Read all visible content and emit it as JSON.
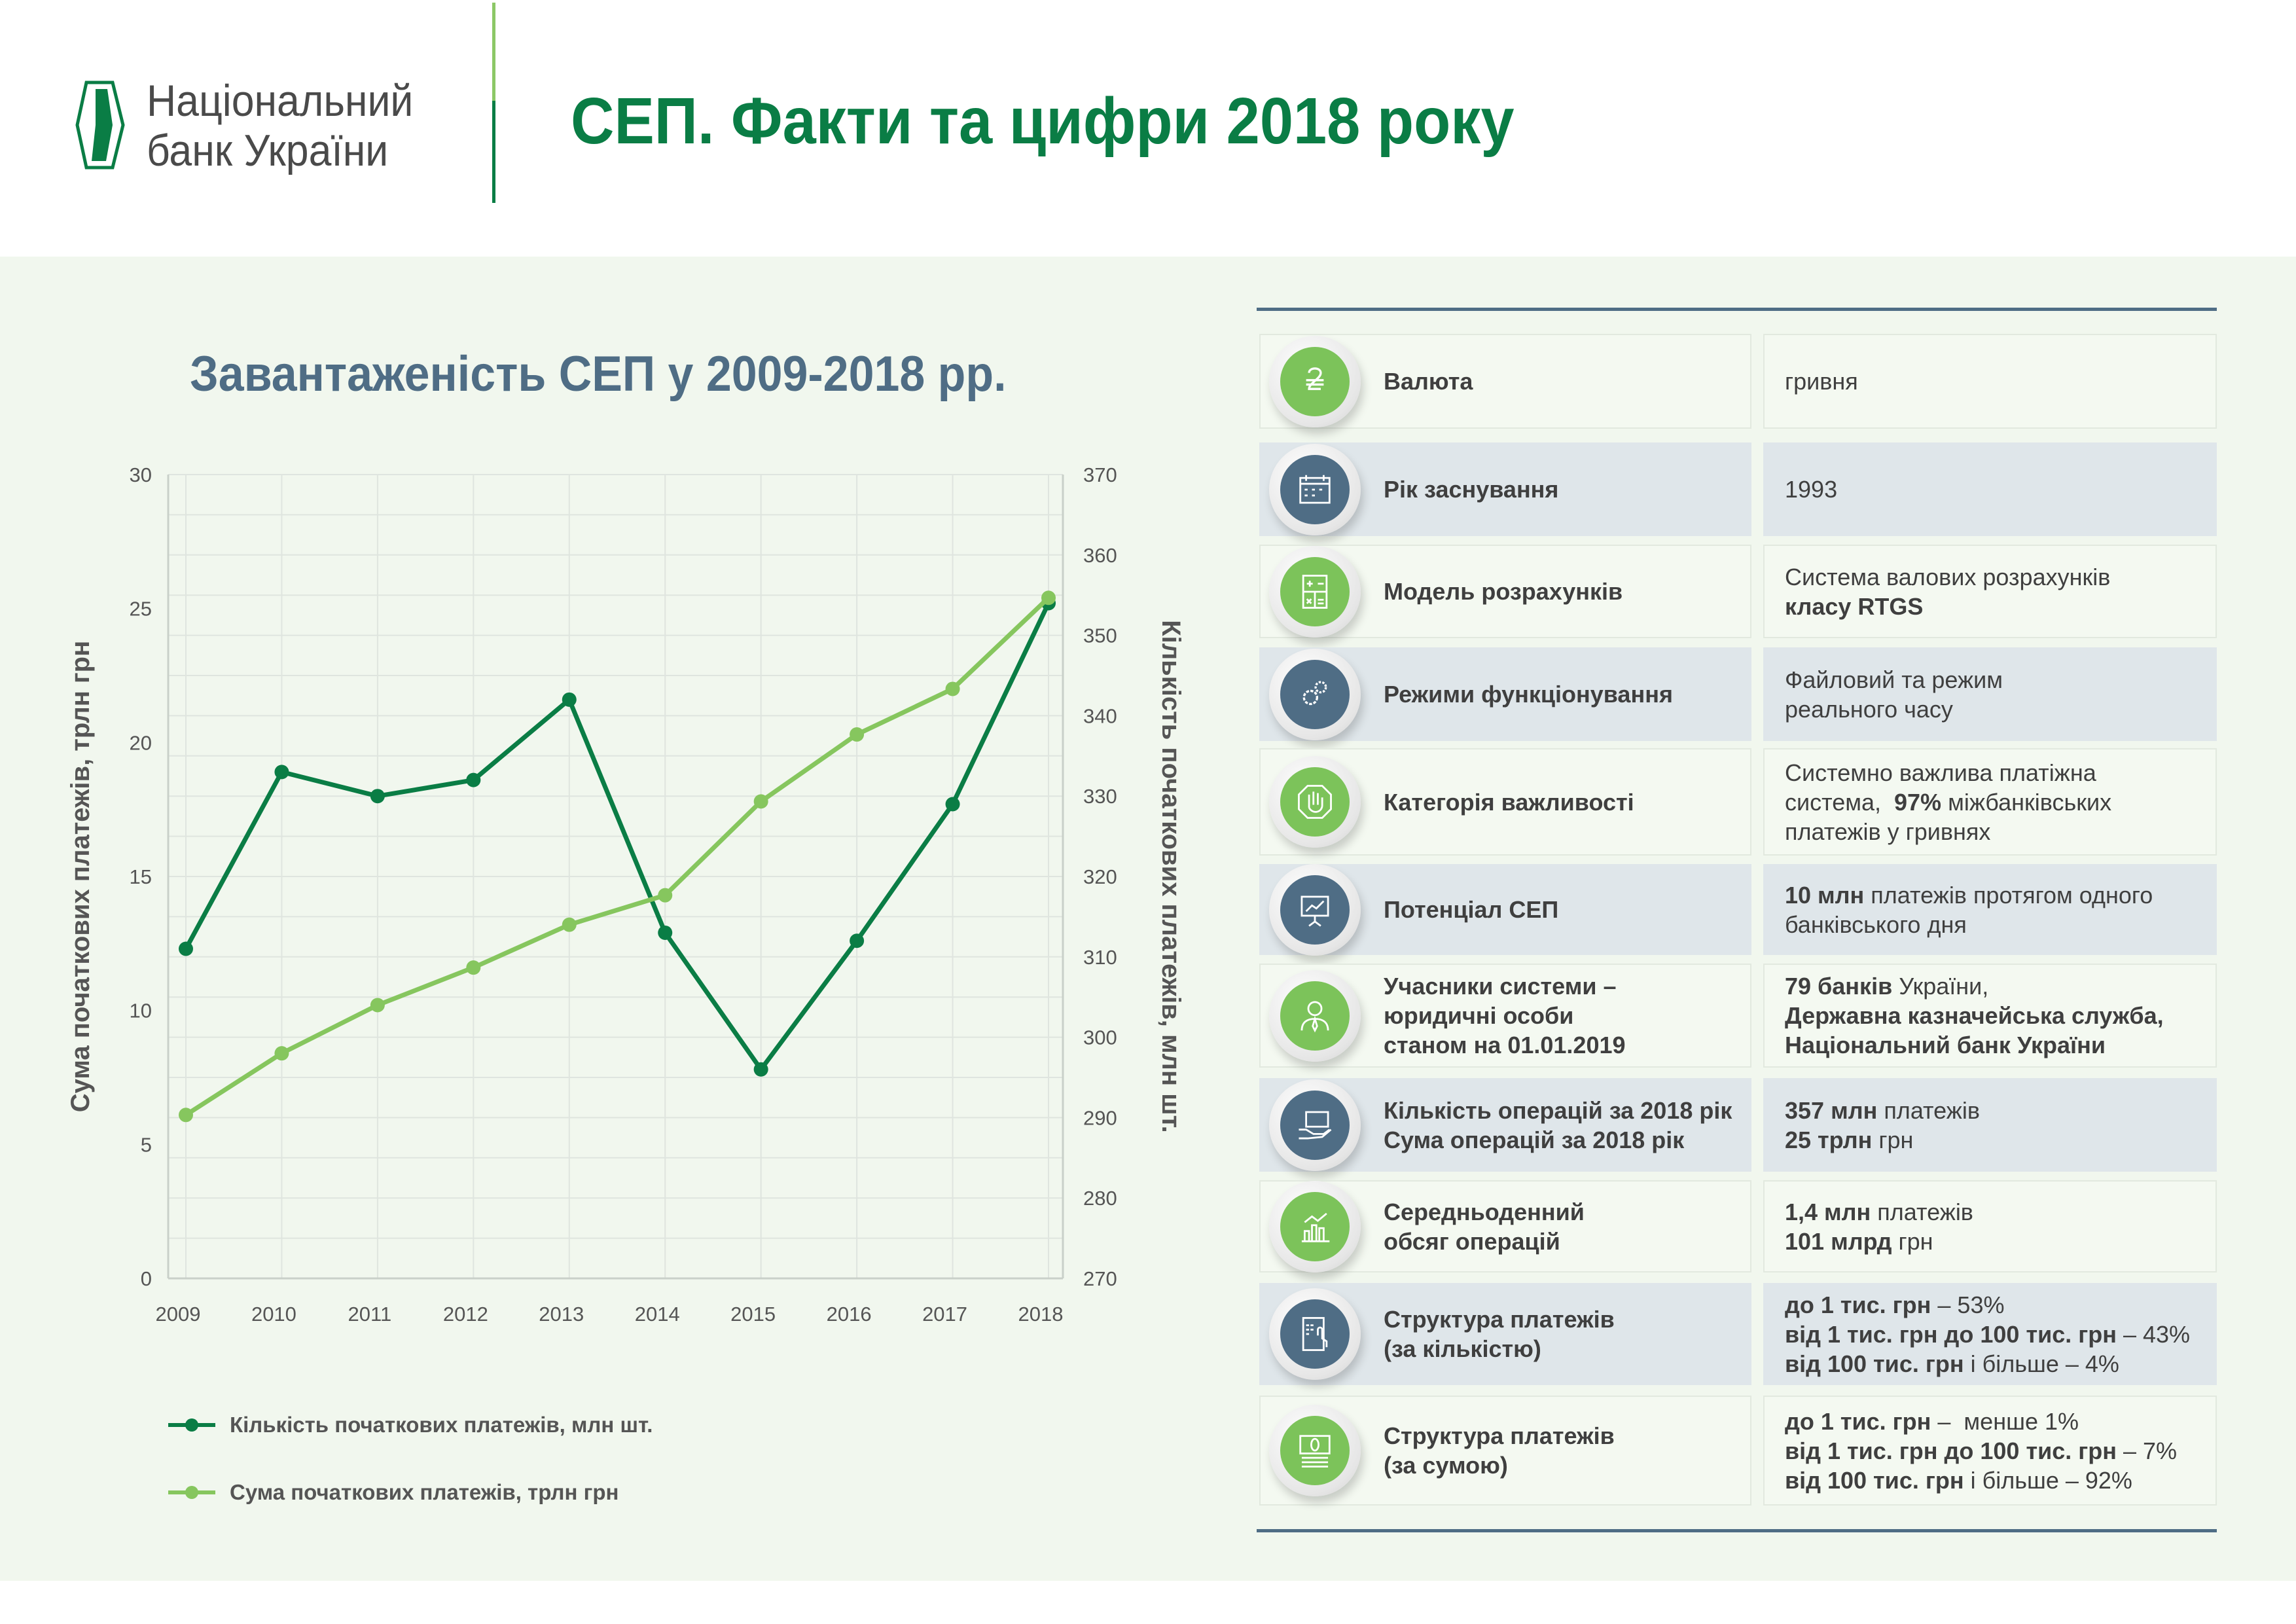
{
  "header": {
    "logo_lines": [
      "Національний",
      "банк України"
    ],
    "title": "СЕП. Факти та цифри 2018 року"
  },
  "colors": {
    "dark_green": "#0a7d45",
    "light_green": "#86c65e",
    "slate": "#4f6d85",
    "bg": "#f1f7ee"
  },
  "chart_data": {
    "type": "line",
    "title": "Завантаженість СЕП у 2009-2018 рр.",
    "categories": [
      "2009",
      "2010",
      "2011",
      "2012",
      "2013",
      "2014",
      "2015",
      "2016",
      "2017",
      "2018"
    ],
    "y_left": {
      "label": "Сума початкових платежів, трлн грн",
      "range": [
        0,
        30
      ],
      "ticks": [
        "0",
        "5",
        "10",
        "15",
        "20",
        "25",
        "30"
      ]
    },
    "y_right": {
      "label": "Кількість початкових платежів, млн шт.",
      "range": [
        270,
        370
      ],
      "ticks": [
        "270",
        "280",
        "290",
        "300",
        "310",
        "320",
        "330",
        "340",
        "350",
        "360",
        "370"
      ]
    },
    "grid": true,
    "legend_position": "bottom-left",
    "series": [
      {
        "name": "Кількість початкових платежів, млн шт.",
        "axis": "right",
        "color": "#0a7d45",
        "values": [
          311,
          333,
          330,
          332,
          342,
          313,
          296,
          312,
          329,
          354
        ]
      },
      {
        "name": "Сума початкових платежів, трлн грн",
        "axis": "left",
        "color": "#86c65e",
        "values": [
          6.1,
          8.4,
          10.2,
          11.6,
          13.2,
          14.3,
          17.8,
          20.3,
          22.0,
          25.4
        ]
      }
    ]
  },
  "facts": [
    {
      "icon": "hryvnia-icon",
      "label": [
        "Валюта"
      ],
      "value": [
        [
          {
            "t": "гривня"
          }
        ]
      ]
    },
    {
      "icon": "calendar-icon",
      "label": [
        "Рік заснування"
      ],
      "value": [
        [
          {
            "t": "1993"
          }
        ]
      ]
    },
    {
      "icon": "calculator-icon",
      "label": [
        "Модель розрахунків"
      ],
      "value": [
        [
          {
            "t": "Система валових розрахунків"
          }
        ],
        [
          {
            "t": "класу RTGS",
            "b": true
          }
        ]
      ]
    },
    {
      "icon": "gears-icon",
      "label": [
        "Режими функціонування"
      ],
      "value": [
        [
          {
            "t": "Файловий та режим"
          }
        ],
        [
          {
            "t": "реального часу"
          }
        ]
      ]
    },
    {
      "icon": "hand-stop-icon",
      "label": [
        "Категорія важливості"
      ],
      "value": [
        [
          {
            "t": "Системно важлива платіжна"
          }
        ],
        [
          {
            "t": "система,  "
          },
          {
            "t": "97%",
            "b": true
          },
          {
            "t": " міжбанківських"
          }
        ],
        [
          {
            "t": "платежів у гривнях"
          }
        ]
      ]
    },
    {
      "icon": "presentation-icon",
      "label": [
        "Потенціал СЕП"
      ],
      "value": [
        [
          {
            "t": "10 млн",
            "b": true
          },
          {
            "t": " платежів протягом одного"
          }
        ],
        [
          {
            "t": "банківського дня"
          }
        ]
      ]
    },
    {
      "icon": "person-icon",
      "label": [
        "Учасники системи –",
        "юридичні особи",
        "станом на 01.01.2019"
      ],
      "value": [
        [
          {
            "t": "79 банків",
            "b": true
          },
          {
            "t": " України,"
          }
        ],
        [
          {
            "t": "Державна казначейська служба,",
            "b": true
          }
        ],
        [
          {
            "t": "Національний банк України",
            "b": true
          }
        ]
      ]
    },
    {
      "icon": "card-hand-icon",
      "label": [
        "Кількість операцій за 2018 рік",
        "Сума операцій за 2018 рік"
      ],
      "value": [
        [
          {
            "t": "357 млн",
            "b": true
          },
          {
            "t": " платежів"
          }
        ],
        [
          {
            "t": "25 трлн",
            "b": true
          },
          {
            "t": " грн"
          }
        ]
      ]
    },
    {
      "icon": "bar-chart-icon",
      "label": [
        "Середньоденний",
        "обсяг операцій"
      ],
      "value": [
        [
          {
            "t": "1,4 млн",
            "b": true
          },
          {
            "t": " платежів"
          }
        ],
        [
          {
            "t": "101 млрд",
            "b": true
          },
          {
            "t": " грн"
          }
        ]
      ]
    },
    {
      "icon": "tablet-touch-icon",
      "label": [
        "Структура платежів",
        "(за кількістю)"
      ],
      "value": [
        [
          {
            "t": "до 1 тис. грн",
            "b": true
          },
          {
            "t": " – 53%"
          }
        ],
        [
          {
            "t": "від 1 тис. грн до 100 тис. грн",
            "b": true
          },
          {
            "t": " – 43%"
          }
        ],
        [
          {
            "t": "від 100 тис. грн",
            "b": true
          },
          {
            "t": " і більше – 4%"
          }
        ]
      ]
    },
    {
      "icon": "banknote-icon",
      "label": [
        "Структура платежів",
        "(за сумою)"
      ],
      "value": [
        [
          {
            "t": "до 1 тис. грн",
            "b": true
          },
          {
            "t": " –  менше 1%"
          }
        ],
        [
          {
            "t": "від 1 тис. грн до 100 тис. грн",
            "b": true
          },
          {
            "t": " – 7%"
          }
        ],
        [
          {
            "t": "від 100 тис. грн",
            "b": true
          },
          {
            "t": " і більше – 92%"
          }
        ]
      ]
    }
  ]
}
